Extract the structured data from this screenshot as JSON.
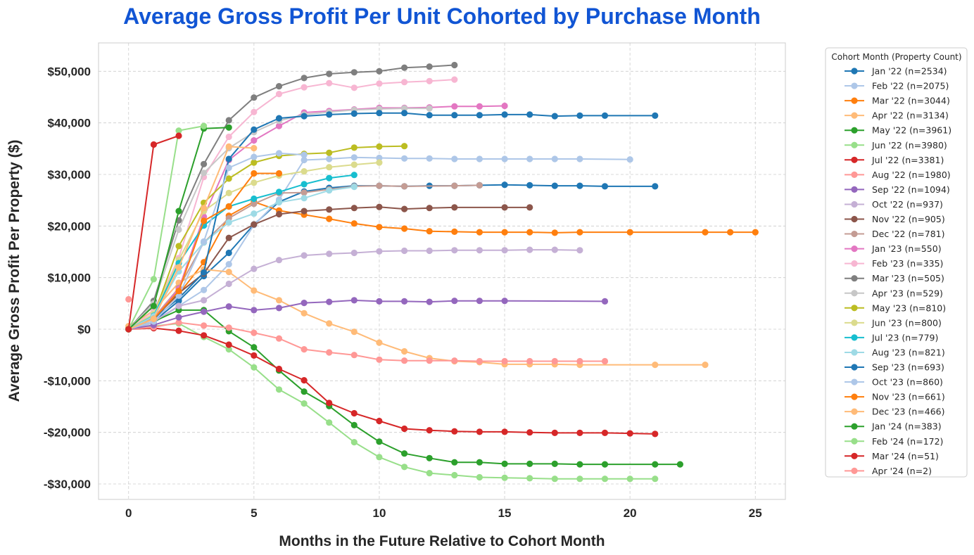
{
  "chart_data": {
    "type": "line",
    "title": "Average Gross Profit Per Unit Cohorted by Purchase Month",
    "xlabel": "Months in the Future Relative to Cohort Month",
    "ylabel": "Average Gross Profit Per Property ($)",
    "xlim": [
      -1.2,
      26.2
    ],
    "ylim": [
      -33000,
      55500
    ],
    "xticks": [
      0,
      5,
      10,
      15,
      20,
      25
    ],
    "xtick_labels": [
      "0",
      "5",
      "10",
      "15",
      "20",
      "25"
    ],
    "yticks": [
      -30000,
      -20000,
      -10000,
      0,
      10000,
      20000,
      30000,
      40000,
      50000
    ],
    "ytick_labels": [
      "-$30,000",
      "-$20,000",
      "-$10,000",
      "$0",
      "$10,000",
      "$20,000",
      "$30,000",
      "$40,000",
      "$50,000"
    ],
    "grid": true,
    "legend_title": "Cohort Month (Property Count)",
    "legend_position": "outside-right",
    "series": [
      {
        "name": "Jan '22 (n=2534)",
        "color": "#1f77b4",
        "x": [
          0,
          1,
          2,
          3,
          4,
          5,
          6,
          7,
          8,
          9,
          10,
          11,
          12,
          13,
          14,
          15,
          16,
          17,
          18,
          19,
          21
        ],
        "y": [
          0,
          1500,
          5500,
          10300,
          14800,
          20300,
          24700,
          26700,
          27400,
          27800,
          27800,
          27700,
          27800,
          27800,
          27900,
          28000,
          27900,
          27800,
          27800,
          27700,
          27700
        ]
      },
      {
        "name": "Feb '22 (n=2075)",
        "color": "#aec7e8",
        "x": [
          0,
          1,
          2,
          3,
          4,
          5,
          6,
          7,
          8,
          9,
          10,
          11,
          12,
          13,
          14,
          15,
          16,
          17,
          18,
          20
        ],
        "y": [
          0,
          1200,
          4500,
          7600,
          12600,
          20200,
          25100,
          32800,
          33000,
          33300,
          33200,
          33100,
          33100,
          33000,
          33000,
          33000,
          33000,
          33000,
          33000,
          32900
        ]
      },
      {
        "name": "Mar '22 (n=3044)",
        "color": "#ff7f0e",
        "x": [
          0,
          1,
          2,
          3,
          4,
          5,
          6,
          7,
          8,
          9,
          10,
          11,
          12,
          13,
          14,
          15,
          16,
          17,
          18,
          20,
          23,
          24,
          25
        ],
        "y": [
          300,
          2200,
          6800,
          13000,
          22000,
          24700,
          23000,
          22200,
          21400,
          20500,
          19800,
          19500,
          19000,
          18900,
          18800,
          18800,
          18800,
          18700,
          18800,
          18800,
          18800,
          18800,
          18800
        ]
      },
      {
        "name": "Apr '22 (n=3134)",
        "color": "#ffbb78",
        "x": [
          0,
          1,
          2,
          3,
          4,
          5,
          6,
          7,
          8,
          9,
          10,
          11,
          12,
          13,
          14,
          15,
          16,
          17,
          18,
          21,
          23
        ],
        "y": [
          600,
          3600,
          9000,
          11600,
          11100,
          7500,
          5600,
          3100,
          1100,
          -500,
          -2600,
          -4300,
          -5600,
          -6200,
          -6400,
          -6800,
          -6800,
          -6800,
          -6900,
          -6900,
          -6900
        ]
      },
      {
        "name": "May '22 (n=3961)",
        "color": "#2ca02c",
        "x": [
          0,
          1,
          2,
          3,
          4,
          5,
          6,
          7,
          8,
          9,
          10,
          11,
          12,
          13,
          14,
          15,
          16,
          17,
          18,
          19,
          21,
          22
        ],
        "y": [
          0,
          1500,
          3700,
          3700,
          -400,
          -3500,
          -8000,
          -12100,
          -14900,
          -18600,
          -21800,
          -24100,
          -25000,
          -25800,
          -25800,
          -26100,
          -26100,
          -26100,
          -26200,
          -26200,
          -26200,
          -26200
        ]
      },
      {
        "name": "Jun '22 (n=3980)",
        "color": "#98df8a",
        "x": [
          0,
          1,
          2,
          3,
          4,
          5,
          6,
          7,
          8,
          9,
          10,
          11,
          12,
          13,
          14,
          15,
          16,
          17,
          18,
          19,
          20,
          21
        ],
        "y": [
          0,
          600,
          1100,
          -1500,
          -3900,
          -7400,
          -11700,
          -14400,
          -18100,
          -21900,
          -24800,
          -26700,
          -27900,
          -28300,
          -28700,
          -28800,
          -28900,
          -29000,
          -29000,
          -29000,
          -29000,
          -29000
        ]
      },
      {
        "name": "Jul '22 (n=3381)",
        "color": "#d62728",
        "x": [
          0,
          1,
          2,
          3,
          4,
          5,
          6,
          7,
          8,
          9,
          10,
          11,
          12,
          13,
          14,
          15,
          16,
          17,
          18,
          19,
          20,
          21
        ],
        "y": [
          0,
          200,
          -300,
          -1200,
          -3000,
          -5100,
          -7700,
          -9900,
          -14300,
          -16300,
          -17800,
          -19300,
          -19600,
          -19800,
          -19900,
          -19900,
          -20000,
          -20100,
          -20100,
          -20100,
          -20200,
          -20300
        ]
      },
      {
        "name": "Aug '22 (n=1980)",
        "color": "#ff9896",
        "x": [
          0,
          1,
          2,
          3,
          4,
          5,
          6,
          7,
          8,
          9,
          10,
          11,
          12,
          13,
          14,
          15,
          16,
          17,
          18,
          19
        ],
        "y": [
          0,
          400,
          1300,
          700,
          300,
          -700,
          -1800,
          -3900,
          -4500,
          -5000,
          -5900,
          -6100,
          -6100,
          -6100,
          -6200,
          -6200,
          -6200,
          -6200,
          -6200,
          -6200
        ]
      },
      {
        "name": "Sep '22 (n=1094)",
        "color": "#9467bd",
        "x": [
          0,
          1,
          2,
          3,
          4,
          5,
          6,
          7,
          8,
          9,
          10,
          11,
          12,
          13,
          14,
          15,
          19
        ],
        "y": [
          0,
          800,
          2300,
          3400,
          4400,
          3700,
          4100,
          5100,
          5300,
          5600,
          5400,
          5400,
          5300,
          5500,
          5500,
          5500,
          5400
        ]
      },
      {
        "name": "Oct '22 (n=937)",
        "color": "#c5b0d5",
        "x": [
          0,
          1,
          2,
          3,
          4,
          5,
          6,
          7,
          8,
          9,
          10,
          11,
          12,
          13,
          14,
          15,
          16,
          17,
          18
        ],
        "y": [
          0,
          1500,
          4500,
          5600,
          8800,
          11700,
          13400,
          14300,
          14600,
          14800,
          15100,
          15200,
          15200,
          15300,
          15300,
          15300,
          15400,
          15400,
          15300
        ]
      },
      {
        "name": "Nov '22 (n=905)",
        "color": "#8c564b",
        "x": [
          0,
          1,
          2,
          3,
          4,
          5,
          6,
          7,
          8,
          9,
          10,
          11,
          12,
          13,
          15,
          16
        ],
        "y": [
          0,
          2000,
          7000,
          10800,
          17700,
          20300,
          22300,
          22900,
          23200,
          23500,
          23700,
          23300,
          23500,
          23600,
          23600,
          23600
        ]
      },
      {
        "name": "Dec '22 (n=781)",
        "color": "#c49c94",
        "x": [
          0,
          1,
          2,
          3,
          4,
          5,
          6,
          7,
          8,
          9,
          10,
          11,
          13,
          14
        ],
        "y": [
          0,
          2200,
          8000,
          16800,
          21500,
          24300,
          26400,
          26500,
          27100,
          27700,
          27800,
          27700,
          27800,
          27900
        ]
      },
      {
        "name": "Jan '23 (n=550)",
        "color": "#e377c2",
        "x": [
          0,
          1,
          2,
          3,
          4,
          5,
          6,
          7,
          8,
          9,
          10,
          11,
          12,
          13,
          14,
          15
        ],
        "y": [
          0,
          2000,
          7800,
          21800,
          32800,
          36600,
          39400,
          42000,
          42300,
          42600,
          42900,
          42900,
          43000,
          43200,
          43200,
          43300
        ]
      },
      {
        "name": "Feb '23 (n=335)",
        "color": "#f7b6d2",
        "x": [
          0,
          1,
          2,
          3,
          4,
          5,
          6,
          7,
          8,
          9,
          10,
          11,
          12,
          13
        ],
        "y": [
          0,
          3500,
          13800,
          29500,
          37300,
          42100,
          45600,
          46900,
          47700,
          46800,
          47600,
          47900,
          48100,
          48400
        ]
      },
      {
        "name": "Mar '23 (n=505)",
        "color": "#7f7f7f",
        "x": [
          0,
          1,
          2,
          3,
          4,
          5,
          6,
          7,
          8,
          9,
          10,
          11,
          12,
          13
        ],
        "y": [
          0,
          5500,
          21100,
          32000,
          40500,
          44900,
          47100,
          48700,
          49500,
          49800,
          50000,
          50700,
          50900,
          51200
        ]
      },
      {
        "name": "Apr '23 (n=529)",
        "color": "#c7c7c7",
        "x": [
          0,
          1,
          2,
          3,
          4,
          5,
          6,
          7,
          8,
          9,
          10,
          11,
          12
        ],
        "y": [
          0,
          5000,
          19300,
          30300,
          35100,
          38200,
          40400,
          41600,
          42100,
          42500,
          42700,
          42800,
          42800
        ]
      },
      {
        "name": "May '23 (n=810)",
        "color": "#bcbd22",
        "x": [
          0,
          1,
          2,
          3,
          4,
          5,
          6,
          7,
          8,
          9,
          10,
          11
        ],
        "y": [
          0,
          2600,
          16100,
          24500,
          29200,
          32300,
          33600,
          34000,
          34200,
          35200,
          35400,
          35500
        ]
      },
      {
        "name": "Jun '23 (n=800)",
        "color": "#dbdb8d",
        "x": [
          0,
          1,
          2,
          3,
          4,
          5,
          6,
          7,
          8,
          9,
          10
        ],
        "y": [
          0,
          3000,
          13400,
          22900,
          26400,
          28400,
          29800,
          30600,
          31400,
          31900,
          32300
        ]
      },
      {
        "name": "Jul '23 (n=779)",
        "color": "#17becf",
        "x": [
          0,
          1,
          2,
          3,
          4,
          5,
          6,
          7,
          8,
          9
        ],
        "y": [
          0,
          2600,
          12800,
          20100,
          23800,
          25300,
          26600,
          28100,
          29300,
          29900
        ]
      },
      {
        "name": "Aug '23 (n=821)",
        "color": "#9edae5",
        "x": [
          0,
          1,
          2,
          3,
          4,
          5,
          6,
          7,
          8,
          9
        ],
        "y": [
          0,
          2500,
          11200,
          16800,
          20700,
          22400,
          24600,
          25400,
          26900,
          27600
        ]
      },
      {
        "name": "Sep '23 (n=693)",
        "color": "#1f77b4",
        "x": [
          0,
          1,
          2,
          3,
          4,
          5,
          6,
          7,
          8,
          9,
          10,
          11,
          12,
          13,
          14,
          15,
          16,
          17,
          18,
          19,
          21
        ],
        "y": [
          0,
          2000,
          6000,
          11000,
          33000,
          38700,
          40900,
          41300,
          41600,
          41800,
          41900,
          41900,
          41500,
          41500,
          41500,
          41600,
          41600,
          41300,
          41400,
          41400,
          41400
        ]
      },
      {
        "name": "Oct '23 (n=860)",
        "color": "#aec7e8",
        "x": [
          0,
          1,
          2,
          3,
          4,
          5,
          6,
          7
        ],
        "y": [
          0,
          1500,
          6500,
          17000,
          31300,
          33400,
          34100,
          33800
        ]
      },
      {
        "name": "Nov '23 (n=661)",
        "color": "#ff7f0e",
        "x": [
          0,
          1,
          2,
          3,
          4,
          5,
          6
        ],
        "y": [
          0,
          2000,
          7400,
          21000,
          23800,
          30200,
          30200
        ]
      },
      {
        "name": "Dec '23 (n=466)",
        "color": "#ffbb78",
        "x": [
          0,
          1,
          2,
          3,
          4,
          5
        ],
        "y": [
          0,
          2000,
          12000,
          23500,
          35400,
          35100
        ]
      },
      {
        "name": "Jan '24 (n=383)",
        "color": "#2ca02c",
        "x": [
          0,
          1,
          2,
          3,
          4
        ],
        "y": [
          0,
          4500,
          22900,
          38900,
          39100
        ]
      },
      {
        "name": "Feb '24 (n=172)",
        "color": "#98df8a",
        "x": [
          0,
          1,
          2,
          3
        ],
        "y": [
          0,
          9700,
          38500,
          39400
        ]
      },
      {
        "name": "Mar '24 (n=51)",
        "color": "#d62728",
        "x": [
          0,
          1,
          2
        ],
        "y": [
          0,
          35800,
          37500
        ]
      },
      {
        "name": "Apr '24 (n=2)",
        "color": "#ff9896",
        "x": [
          0
        ],
        "y": [
          5800
        ]
      }
    ]
  }
}
